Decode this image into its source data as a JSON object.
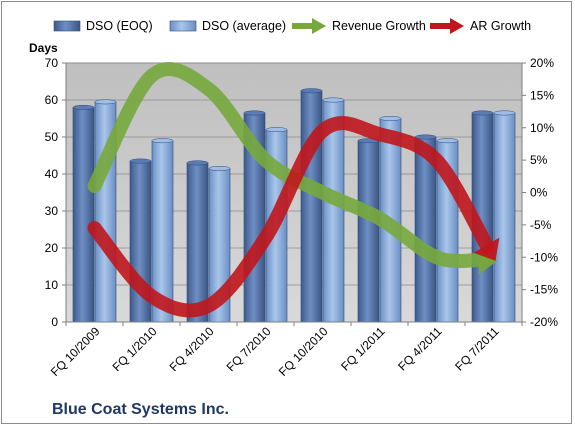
{
  "chart_data": {
    "type": "bar",
    "title": "",
    "caption": "Blue Coat Systems Inc.",
    "y_axis_label": "Days",
    "categories": [
      "FQ 10/2009",
      "FQ 1/2010",
      "FQ 4/2010",
      "FQ 7/2010",
      "FQ 10/2010",
      "FQ 1/2011",
      "FQ 4/2011",
      "FQ 7/2011"
    ],
    "series": [
      {
        "name": "DSO (EOQ)",
        "axis": "left",
        "kind": "bar",
        "color": "#4f6fa3",
        "values": [
          58,
          43.5,
          43,
          56.5,
          62.5,
          49,
          50,
          56.5
        ]
      },
      {
        "name": "DSO (average)",
        "axis": "left",
        "kind": "bar",
        "color": "#7fa3d4",
        "values": [
          59.5,
          49,
          41.5,
          52,
          60,
          55,
          49,
          56.5
        ]
      },
      {
        "name": "Revenue Growth",
        "axis": "right",
        "kind": "arrow-line",
        "color": "#77a83c",
        "values": [
          1,
          18,
          16,
          5,
          0,
          -4,
          -10,
          -10.5
        ]
      },
      {
        "name": "AR Growth",
        "axis": "right",
        "kind": "arrow-line",
        "color": "#c0161c",
        "values": [
          -5.5,
          -16,
          -17.5,
          -7,
          9.5,
          9,
          5,
          -10
        ]
      }
    ],
    "y_left": {
      "min": 0,
      "max": 70,
      "step": 10,
      "ticks": [
        "0",
        "10",
        "20",
        "30",
        "40",
        "50",
        "60",
        "70"
      ]
    },
    "y_right": {
      "min": -20,
      "max": 20,
      "step": 5,
      "ticks": [
        "-20%",
        "-15%",
        "-10%",
        "-5%",
        "0%",
        "5%",
        "10%",
        "15%",
        "20%"
      ]
    },
    "grid": true,
    "legend_position": "top",
    "plot_background": "#c8c8c8"
  }
}
